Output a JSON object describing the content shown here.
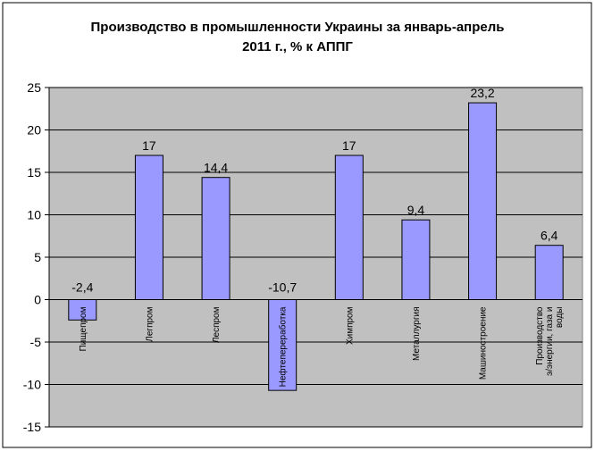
{
  "chart_data": {
    "type": "bar",
    "title_line1": "Производство в промышленности Украины за январь-апрель",
    "title_line2": "2011 г., % к АППГ",
    "categories": [
      [
        "Пищепром"
      ],
      [
        "Легпром"
      ],
      [
        "Леспром"
      ],
      [
        "Нефтепереработка"
      ],
      [
        "Химпром"
      ],
      [
        "Металлургия"
      ],
      [
        "Машиностроение"
      ],
      [
        "Производство",
        "э/энергии, газа и",
        "воды"
      ]
    ],
    "values": [
      -2.4,
      17,
      14.4,
      -10.7,
      17,
      9.4,
      23.2,
      6.4
    ],
    "data_labels": [
      "-2,4",
      "17",
      "14,4",
      "-10,7",
      "17",
      "9,4",
      "23,2",
      "6,4"
    ],
    "ylim": [
      -15,
      25
    ],
    "yticks": [
      25,
      20,
      15,
      10,
      5,
      0,
      -5,
      -10,
      -15
    ],
    "grid": true,
    "legend": "none",
    "bar_color": "#9999ff",
    "plot_bg": "#c0c0c0"
  }
}
